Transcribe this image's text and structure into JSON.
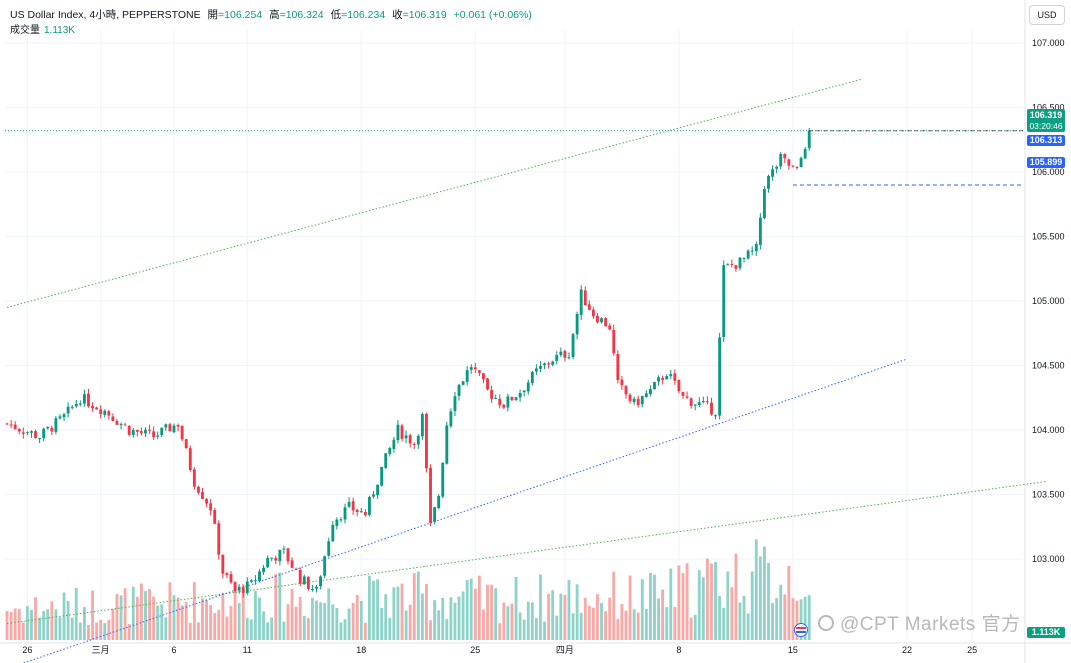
{
  "header": {
    "symbol": "US Dollar Index, 4小時, PEPPERSTONE",
    "open_label": "開",
    "open_value": "=106.254",
    "high_label": "高",
    "high_value": "=106.324",
    "low_label": "低",
    "low_value": "=106.234",
    "close_label": "收",
    "close_value": "=106.319",
    "change": "+0.061 (+0.06%)",
    "volume_label": "成交量",
    "volume_value": "1.113K"
  },
  "currency_button": "USD",
  "price_tags": {
    "last_price": "106.319",
    "countdown": "03:20:46",
    "tag2": "106.313",
    "tag3": "105.899",
    "volume": "1.113K"
  },
  "watermark": "@CPT Markets 官方",
  "colors": {
    "up": "#089981",
    "down": "#f23645",
    "vol_up": "#8fd3c8",
    "vol_down": "#f7a9a7",
    "grid": "#f0f3fa",
    "channel_green": "#4caf50",
    "trend_blue": "#2962ff",
    "price_line": "#089981"
  },
  "chart_data": {
    "type": "candlestick",
    "ylim": [
      102.45,
      107.1
    ],
    "y_ticks": [
      103.0,
      103.5,
      104.0,
      104.5,
      105.0,
      105.5,
      106.0,
      106.5,
      107.0
    ],
    "y_tick_labels": [
      "103.000",
      "103.500",
      "104.000",
      "104.500",
      "105.000",
      "105.500",
      "106.000",
      "106.500",
      "107.000"
    ],
    "x_tick_labels": [
      {
        "bar": 5,
        "label": "26"
      },
      {
        "bar": 23,
        "label": "三月"
      },
      {
        "bar": 41,
        "label": "6"
      },
      {
        "bar": 59,
        "label": "11"
      },
      {
        "bar": 87,
        "label": "18"
      },
      {
        "bar": 115,
        "label": "25"
      },
      {
        "bar": 137,
        "label": "四月"
      },
      {
        "bar": 165,
        "label": "8"
      },
      {
        "bar": 193,
        "label": "15"
      },
      {
        "bar": 221,
        "label": "22"
      },
      {
        "bar": 237,
        "label": "25"
      }
    ],
    "bar_count_visible": 250,
    "close_anchors": [
      [
        0,
        104.05
      ],
      [
        8,
        103.95
      ],
      [
        14,
        104.1
      ],
      [
        18,
        104.25
      ],
      [
        24,
        104.15
      ],
      [
        30,
        104.0
      ],
      [
        36,
        103.95
      ],
      [
        42,
        104.05
      ],
      [
        46,
        103.6
      ],
      [
        50,
        103.4
      ],
      [
        53,
        102.9
      ],
      [
        56,
        102.75
      ],
      [
        60,
        102.8
      ],
      [
        64,
        103.0
      ],
      [
        68,
        103.05
      ],
      [
        72,
        102.85
      ],
      [
        76,
        102.75
      ],
      [
        80,
        103.3
      ],
      [
        84,
        103.4
      ],
      [
        88,
        103.35
      ],
      [
        92,
        103.7
      ],
      [
        96,
        104.0
      ],
      [
        100,
        103.9
      ],
      [
        102,
        104.1
      ],
      [
        104,
        103.25
      ],
      [
        106,
        103.5
      ],
      [
        108,
        104.05
      ],
      [
        110,
        104.3
      ],
      [
        114,
        104.5
      ],
      [
        118,
        104.3
      ],
      [
        122,
        104.2
      ],
      [
        126,
        104.3
      ],
      [
        130,
        104.45
      ],
      [
        134,
        104.55
      ],
      [
        138,
        104.6
      ],
      [
        141,
        105.05
      ],
      [
        144,
        104.9
      ],
      [
        148,
        104.8
      ],
      [
        150,
        104.35
      ],
      [
        154,
        104.2
      ],
      [
        158,
        104.3
      ],
      [
        162,
        104.45
      ],
      [
        166,
        104.25
      ],
      [
        170,
        104.2
      ],
      [
        174,
        104.15
      ],
      [
        176,
        105.25
      ],
      [
        180,
        105.3
      ],
      [
        184,
        105.4
      ],
      [
        186,
        105.9
      ],
      [
        190,
        106.1
      ],
      [
        194,
        106.0
      ],
      [
        197,
        106.32
      ]
    ],
    "volume_anchors_k": [
      [
        0,
        0.5
      ],
      [
        20,
        0.55
      ],
      [
        40,
        0.6
      ],
      [
        60,
        0.7
      ],
      [
        80,
        0.65
      ],
      [
        100,
        0.7
      ],
      [
        120,
        0.65
      ],
      [
        140,
        0.7
      ],
      [
        160,
        0.7
      ],
      [
        176,
        1.0
      ],
      [
        190,
        1.05
      ],
      [
        197,
        1.113
      ]
    ],
    "volume_ylim_k": [
      0,
      3.0
    ],
    "horizontal_lines": [
      106.319,
      105.899
    ],
    "series": [
      {
        "name": "Channel upper",
        "type": "trendline",
        "points": [
          [
            0,
            104.95
          ],
          [
            210,
            106.72
          ]
        ]
      },
      {
        "name": "Channel lower",
        "type": "trendline",
        "points": [
          [
            0,
            102.5
          ],
          [
            255,
            103.6
          ]
        ]
      },
      {
        "name": "Support",
        "type": "trendline",
        "points": [
          [
            0,
            102.15
          ],
          [
            221,
            104.55
          ]
        ]
      }
    ]
  }
}
